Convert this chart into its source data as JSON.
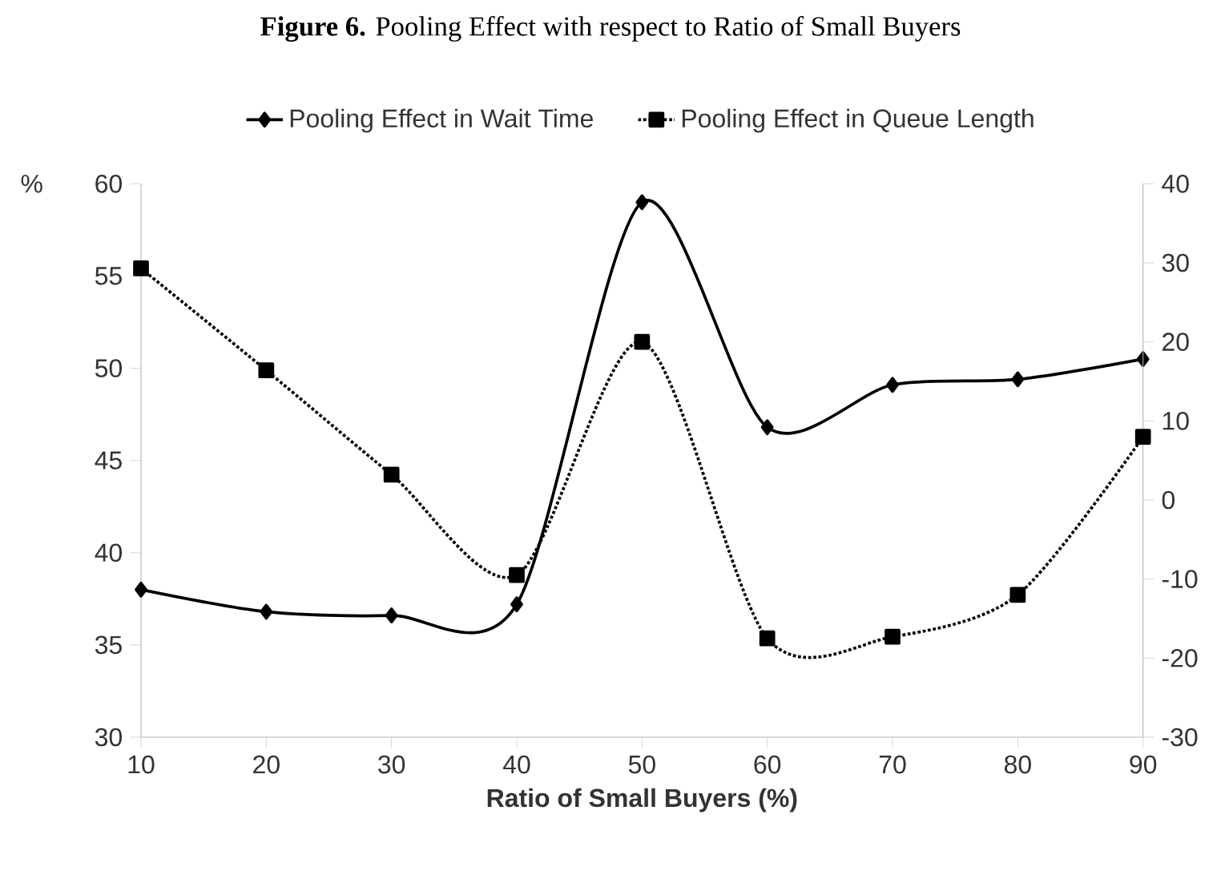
{
  "chart_data": {
    "type": "line",
    "title": "**Figure 6.** Pooling Effect with respect to Ratio of Small Buyers",
    "xlabel": "Ratio of Small Buyers (%)",
    "ylabel": "%",
    "x": [
      10,
      20,
      30,
      40,
      50,
      60,
      70,
      80,
      90
    ],
    "xlim": [
      10,
      90
    ],
    "xticks": [
      10,
      20,
      30,
      40,
      50,
      60,
      70,
      80,
      90
    ],
    "ylim": [
      30,
      60
    ],
    "yticks": [
      30,
      35,
      40,
      45,
      50,
      55,
      60
    ],
    "y2lim": [
      -30,
      40
    ],
    "y2ticks": [
      -30,
      -20,
      -10,
      0,
      10,
      20,
      30,
      40
    ],
    "legend": "top",
    "grid": false,
    "series": [
      {
        "name": "Pooling Effect in Wait Time",
        "color": "#000000",
        "marker": "diamond",
        "line_style": "solid",
        "values": [
          38,
          36.8,
          36.6,
          37.2,
          59,
          46.8,
          49.1,
          49.4,
          50.5
        ]
      },
      {
        "name": "Pooling Effect in Queue Length",
        "color": "#000000",
        "marker": "square",
        "line_style": "dotted",
        "axis": "y2",
        "values": [
          29.3,
          16.4,
          3.2,
          -9.5,
          20,
          -17.5,
          -17.3,
          -12,
          8
        ]
      }
    ]
  }
}
